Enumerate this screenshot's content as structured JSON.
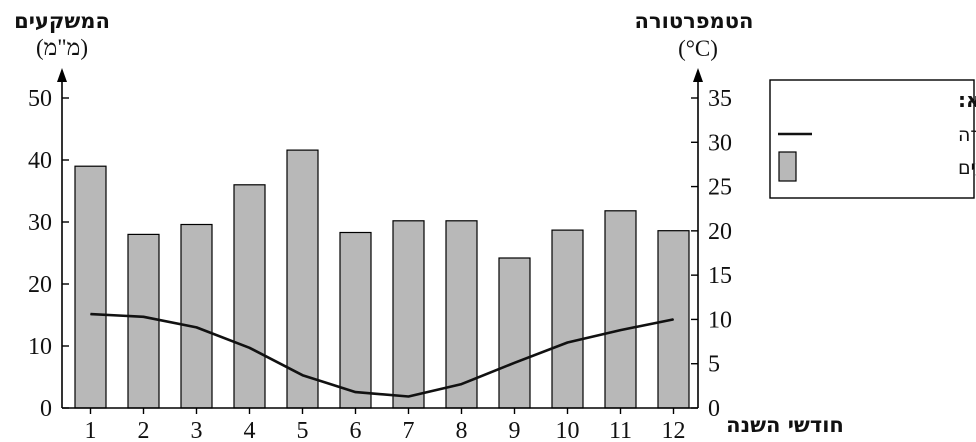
{
  "chart_data": {
    "type": "bar",
    "title": "",
    "categories": [
      "1",
      "2",
      "3",
      "4",
      "5",
      "6",
      "7",
      "8",
      "9",
      "10",
      "11",
      "12"
    ],
    "xlabel": "חודשי השנה",
    "left_axis": {
      "title": "המשקעים",
      "unit": "(מ\"מ)",
      "ylim": [
        0,
        50
      ],
      "ticks": [
        0,
        10,
        20,
        30,
        40,
        50
      ]
    },
    "right_axis": {
      "title": "הטמפרטורה",
      "unit": "(°C)",
      "ylim": [
        0,
        35
      ],
      "ticks": [
        0,
        5,
        10,
        15,
        20,
        25,
        30,
        35
      ]
    },
    "series": [
      {
        "name": "משקעים",
        "type": "bar",
        "axis": "left",
        "color": "#b8b8b8",
        "values": [
          39,
          28,
          29.6,
          36,
          41.6,
          28.3,
          30.2,
          30.2,
          24.2,
          28.7,
          31.8,
          28.6
        ]
      },
      {
        "name": "טמפרטורה",
        "type": "line",
        "axis": "right",
        "color": "#111111",
        "values": [
          10.6,
          10.3,
          9.1,
          6.8,
          3.7,
          1.8,
          1.3,
          2.7,
          5.1,
          7.4,
          8.8,
          10
        ]
      }
    ],
    "legend": {
      "title": "מקרא:",
      "position": "right",
      "items": [
        {
          "label": "טמפרטורה",
          "symbol": "line"
        },
        {
          "label": "משקעים",
          "symbol": "bar"
        }
      ]
    },
    "grid": false
  }
}
